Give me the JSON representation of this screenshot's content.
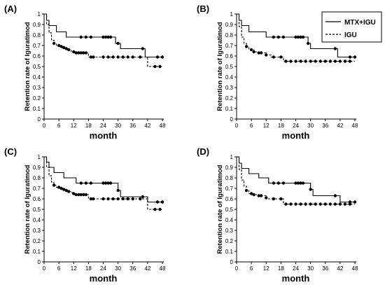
{
  "chart_data": [
    {
      "panel": "(A)",
      "type": "line",
      "step": true,
      "xlabel": "month",
      "ylabel": "Retention rate of Iguratimod",
      "xlim": [
        0,
        48
      ],
      "ylim": [
        0,
        1
      ],
      "x_ticks": [
        0,
        6,
        12,
        18,
        24,
        30,
        36,
        42,
        48
      ],
      "y_ticks": [
        0,
        0.1,
        0.2,
        0.3,
        0.4,
        0.5,
        0.6,
        0.7,
        0.8,
        0.9,
        1
      ],
      "y_tick_labels": [
        "0",
        "0.1",
        "0.2",
        "0.3",
        "0.4",
        "0.5",
        "0.6",
        "0.7",
        "0.8",
        "0.9",
        "1"
      ],
      "grid": false,
      "series": [
        {
          "name": "MTX+IGU",
          "line_style": "solid",
          "steps": [
            [
              0,
              1.0
            ],
            [
              1,
              0.94
            ],
            [
              2,
              0.89
            ],
            [
              5,
              0.83
            ],
            [
              9,
              0.78
            ],
            [
              29,
              0.72
            ],
            [
              31,
              0.67
            ],
            [
              41,
              0.59
            ]
          ],
          "censored": [
            [
              15,
              0.78
            ],
            [
              17,
              0.78
            ],
            [
              19,
              0.78
            ],
            [
              24,
              0.78
            ],
            [
              25,
              0.78
            ],
            [
              26,
              0.78
            ],
            [
              27,
              0.78
            ],
            [
              30,
              0.72
            ],
            [
              40,
              0.67
            ],
            [
              46,
              0.59
            ],
            [
              48,
              0.59
            ]
          ]
        },
        {
          "name": "IGU",
          "line_style": "dashed",
          "steps": [
            [
              0,
              1.0
            ],
            [
              1,
              0.9
            ],
            [
              2,
              0.82
            ],
            [
              3,
              0.75
            ],
            [
              4,
              0.72
            ],
            [
              5,
              0.7
            ],
            [
              7,
              0.68
            ],
            [
              9,
              0.66
            ],
            [
              11,
              0.64
            ],
            [
              12,
              0.63
            ],
            [
              18,
              0.59
            ],
            [
              42,
              0.5
            ]
          ],
          "censored": [
            [
              4,
              0.72
            ],
            [
              6,
              0.7
            ],
            [
              7,
              0.69
            ],
            [
              8,
              0.68
            ],
            [
              9,
              0.67
            ],
            [
              10,
              0.66
            ],
            [
              12,
              0.64
            ],
            [
              13,
              0.63
            ],
            [
              14,
              0.63
            ],
            [
              15,
              0.63
            ],
            [
              16,
              0.63
            ],
            [
              17,
              0.63
            ],
            [
              19,
              0.59
            ],
            [
              20,
              0.59
            ],
            [
              24,
              0.59
            ],
            [
              26,
              0.59
            ],
            [
              28,
              0.59
            ],
            [
              30,
              0.59
            ],
            [
              32,
              0.59
            ],
            [
              34,
              0.59
            ],
            [
              36,
              0.59
            ],
            [
              39,
              0.59
            ],
            [
              45,
              0.5
            ],
            [
              47,
              0.5
            ]
          ]
        }
      ]
    },
    {
      "panel": "(B)",
      "type": "line",
      "step": true,
      "xlabel": "month",
      "ylabel": "Retention rate of Iguratimod",
      "xlim": [
        0,
        48
      ],
      "ylim": [
        0,
        1
      ],
      "x_ticks": [
        0,
        6,
        12,
        18,
        24,
        30,
        36,
        42,
        48
      ],
      "y_ticks": [
        0,
        0.1,
        0.2,
        0.3,
        0.4,
        0.5,
        0.6,
        0.7,
        0.8,
        0.9,
        1
      ],
      "y_tick_labels": [
        "0",
        "0.1",
        "0.2",
        "0.3",
        "0.4",
        "0.5",
        "0.6",
        "0.7",
        "0.8",
        "0.9",
        "1"
      ],
      "grid": false,
      "legend": {
        "position": "top-right",
        "entries": [
          "MTX+IGU",
          "IGU"
        ]
      },
      "series": [
        {
          "name": "MTX+IGU",
          "line_style": "solid",
          "steps": [
            [
              0,
              1.0
            ],
            [
              1,
              0.94
            ],
            [
              2,
              0.89
            ],
            [
              5,
              0.83
            ],
            [
              12,
              0.78
            ],
            [
              29,
              0.72
            ],
            [
              30,
              0.67
            ],
            [
              41,
              0.59
            ]
          ],
          "censored": [
            [
              15,
              0.78
            ],
            [
              17,
              0.78
            ],
            [
              19,
              0.78
            ],
            [
              24,
              0.78
            ],
            [
              25,
              0.78
            ],
            [
              26,
              0.78
            ],
            [
              27,
              0.78
            ],
            [
              29,
              0.72
            ],
            [
              40,
              0.67
            ],
            [
              46,
              0.59
            ],
            [
              48,
              0.59
            ]
          ]
        },
        {
          "name": "IGU",
          "line_style": "dashed",
          "steps": [
            [
              0,
              1.0
            ],
            [
              1,
              0.88
            ],
            [
              2,
              0.78
            ],
            [
              3,
              0.72
            ],
            [
              4,
              0.69
            ],
            [
              5,
              0.66
            ],
            [
              7,
              0.64
            ],
            [
              9,
              0.63
            ],
            [
              12,
              0.61
            ],
            [
              14,
              0.59
            ],
            [
              19,
              0.55
            ]
          ],
          "censored": [
            [
              4,
              0.69
            ],
            [
              6,
              0.66
            ],
            [
              7,
              0.64
            ],
            [
              9,
              0.63
            ],
            [
              10,
              0.63
            ],
            [
              12,
              0.61
            ],
            [
              15,
              0.59
            ],
            [
              18,
              0.59
            ],
            [
              20,
              0.55
            ],
            [
              22,
              0.55
            ],
            [
              24,
              0.55
            ],
            [
              26,
              0.55
            ],
            [
              28,
              0.55
            ],
            [
              30,
              0.55
            ],
            [
              32,
              0.55
            ],
            [
              34,
              0.55
            ],
            [
              36,
              0.55
            ],
            [
              38,
              0.55
            ],
            [
              40,
              0.55
            ],
            [
              42,
              0.55
            ],
            [
              44,
              0.55
            ],
            [
              46,
              0.55
            ]
          ]
        }
      ]
    },
    {
      "panel": "(C)",
      "type": "line",
      "step": true,
      "xlabel": "month",
      "ylabel": "Retention rate of Iguratimod",
      "xlim": [
        0,
        48
      ],
      "ylim": [
        0,
        1
      ],
      "x_ticks": [
        0,
        6,
        12,
        18,
        24,
        30,
        36,
        42,
        48
      ],
      "y_ticks": [
        0,
        0.1,
        0.2,
        0.3,
        0.4,
        0.5,
        0.6,
        0.7,
        0.8,
        0.9,
        1
      ],
      "y_tick_labels": [
        "0",
        "0.1",
        "0.2",
        "0.3",
        "0.4",
        "0.5",
        "0.6",
        "0.7",
        "0.8",
        "0.9",
        "1"
      ],
      "grid": false,
      "series": [
        {
          "name": "MTX+IGU",
          "line_style": "solid",
          "steps": [
            [
              0,
              1.0
            ],
            [
              1,
              0.95
            ],
            [
              2,
              0.9
            ],
            [
              4,
              0.85
            ],
            [
              8,
              0.8
            ],
            [
              13,
              0.75
            ],
            [
              30,
              0.68
            ],
            [
              31,
              0.62
            ],
            [
              42,
              0.57
            ]
          ],
          "censored": [
            [
              15,
              0.75
            ],
            [
              17,
              0.75
            ],
            [
              19,
              0.75
            ],
            [
              24,
              0.75
            ],
            [
              25,
              0.75
            ],
            [
              26,
              0.75
            ],
            [
              27,
              0.75
            ],
            [
              30,
              0.68
            ],
            [
              40,
              0.62
            ],
            [
              46,
              0.57
            ],
            [
              48,
              0.57
            ]
          ]
        },
        {
          "name": "IGU",
          "line_style": "dashed",
          "steps": [
            [
              0,
              1.0
            ],
            [
              1,
              0.9
            ],
            [
              2,
              0.82
            ],
            [
              3,
              0.76
            ],
            [
              4,
              0.73
            ],
            [
              5,
              0.71
            ],
            [
              7,
              0.69
            ],
            [
              9,
              0.67
            ],
            [
              11,
              0.66
            ],
            [
              12,
              0.64
            ],
            [
              18,
              0.6
            ],
            [
              42,
              0.5
            ]
          ],
          "censored": [
            [
              4,
              0.73
            ],
            [
              6,
              0.71
            ],
            [
              7,
              0.7
            ],
            [
              8,
              0.69
            ],
            [
              9,
              0.68
            ],
            [
              10,
              0.67
            ],
            [
              12,
              0.65
            ],
            [
              13,
              0.64
            ],
            [
              14,
              0.64
            ],
            [
              15,
              0.64
            ],
            [
              16,
              0.64
            ],
            [
              17,
              0.64
            ],
            [
              19,
              0.6
            ],
            [
              20,
              0.6
            ],
            [
              24,
              0.6
            ],
            [
              26,
              0.6
            ],
            [
              28,
              0.6
            ],
            [
              30,
              0.6
            ],
            [
              32,
              0.6
            ],
            [
              34,
              0.6
            ],
            [
              36,
              0.6
            ],
            [
              39,
              0.6
            ],
            [
              45,
              0.5
            ],
            [
              47,
              0.5
            ]
          ]
        }
      ]
    },
    {
      "panel": "(D)",
      "type": "line",
      "step": true,
      "xlabel": "month",
      "ylabel": "Retention rate of Iguratimod",
      "xlim": [
        0,
        48
      ],
      "ylim": [
        0,
        1
      ],
      "x_ticks": [
        0,
        6,
        12,
        18,
        24,
        30,
        36,
        42,
        48
      ],
      "y_ticks": [
        0,
        0.1,
        0.2,
        0.3,
        0.4,
        0.5,
        0.6,
        0.7,
        0.8,
        0.9,
        1
      ],
      "y_tick_labels": [
        "0",
        "0.1",
        "0.2",
        "0.3",
        "0.4",
        "0.5",
        "0.6",
        "0.7",
        "0.8",
        "0.9",
        "1"
      ],
      "grid": false,
      "series": [
        {
          "name": "MTX+IGU",
          "line_style": "solid",
          "steps": [
            [
              0,
              1.0
            ],
            [
              1,
              0.94
            ],
            [
              2,
              0.89
            ],
            [
              5,
              0.84
            ],
            [
              9,
              0.8
            ],
            [
              13,
              0.75
            ],
            [
              30,
              0.69
            ],
            [
              31,
              0.63
            ],
            [
              42,
              0.57
            ]
          ],
          "censored": [
            [
              15,
              0.75
            ],
            [
              17,
              0.75
            ],
            [
              19,
              0.75
            ],
            [
              24,
              0.75
            ],
            [
              25,
              0.75
            ],
            [
              26,
              0.75
            ],
            [
              27,
              0.75
            ],
            [
              30,
              0.69
            ],
            [
              40,
              0.63
            ],
            [
              46,
              0.57
            ],
            [
              48,
              0.57
            ]
          ]
        },
        {
          "name": "IGU",
          "line_style": "dashed",
          "steps": [
            [
              0,
              1.0
            ],
            [
              1,
              0.88
            ],
            [
              2,
              0.78
            ],
            [
              3,
              0.72
            ],
            [
              4,
              0.68
            ],
            [
              5,
              0.65
            ],
            [
              7,
              0.64
            ],
            [
              9,
              0.63
            ],
            [
              12,
              0.6
            ],
            [
              19,
              0.55
            ]
          ],
          "censored": [
            [
              4,
              0.68
            ],
            [
              6,
              0.65
            ],
            [
              7,
              0.64
            ],
            [
              9,
              0.63
            ],
            [
              10,
              0.63
            ],
            [
              12,
              0.61
            ],
            [
              15,
              0.6
            ],
            [
              18,
              0.6
            ],
            [
              20,
              0.55
            ],
            [
              22,
              0.55
            ],
            [
              24,
              0.55
            ],
            [
              26,
              0.55
            ],
            [
              28,
              0.55
            ],
            [
              30,
              0.55
            ],
            [
              32,
              0.55
            ],
            [
              34,
              0.55
            ],
            [
              36,
              0.55
            ],
            [
              38,
              0.55
            ],
            [
              40,
              0.55
            ],
            [
              42,
              0.55
            ],
            [
              44,
              0.55
            ],
            [
              46,
              0.55
            ]
          ]
        }
      ]
    }
  ]
}
